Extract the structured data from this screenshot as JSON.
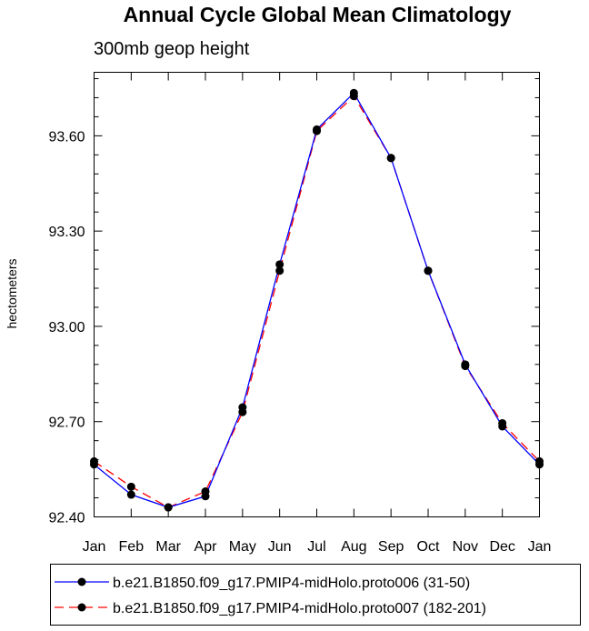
{
  "chart_data": {
    "type": "line",
    "title": "Annual Cycle Global Mean Climatology",
    "subtitle": "300mb geop height",
    "xlabel": "",
    "ylabel": "hectometers",
    "categories": [
      "Jan",
      "Feb",
      "Mar",
      "Apr",
      "May",
      "Jun",
      "Jul",
      "Aug",
      "Sep",
      "Oct",
      "Nov",
      "Dec",
      "Jan"
    ],
    "ylim": [
      92.4,
      93.8
    ],
    "yticks": [
      "92.40",
      "92.70",
      "93.00",
      "93.30",
      "93.60"
    ],
    "grid": false,
    "legend_position": "bottom",
    "series": [
      {
        "name": "b.e21.B1850.f09_g17.PMIP4-midHolo.proto006 (31-50)",
        "color": "#0000ff",
        "dash": "solid",
        "values": [
          92.565,
          92.47,
          92.43,
          92.465,
          92.745,
          93.195,
          93.62,
          93.735,
          93.53,
          93.175,
          92.88,
          92.685,
          92.565
        ]
      },
      {
        "name": "b.e21.B1850.f09_g17.PMIP4-midHolo.proto007 (182-201)",
        "color": "#ff0000",
        "dash": "dashed",
        "values": [
          92.575,
          92.495,
          92.43,
          92.48,
          92.73,
          93.175,
          93.615,
          93.725,
          93.53,
          93.175,
          92.875,
          92.695,
          92.575
        ]
      }
    ]
  }
}
